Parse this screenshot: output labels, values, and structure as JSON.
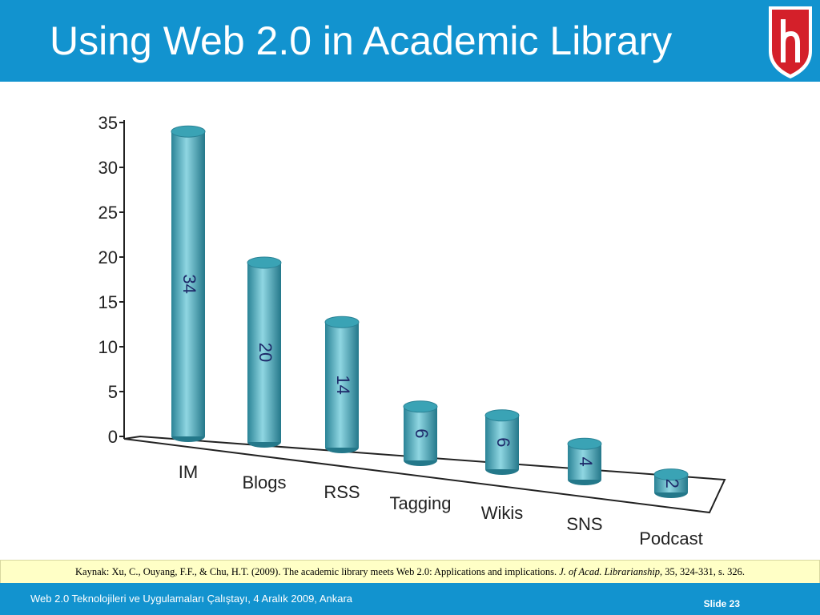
{
  "slide": {
    "title": "Using Web 2.0 in Academic Library",
    "citation": [
      "Kaynak: Xu, C., Ouyang, F.F., & Chu, H.T. (2009). The academic library meets Web 2.0:  Applications and implications. ",
      "J. of Acad. Librarianship",
      ", 35, 324-331, s. 326."
    ],
    "footer": "Web 2.0 Teknolojileri ve Uygulamaları Çalıştayı, 4 Aralık 2009, Ankara",
    "slide_number": "Slide 23"
  },
  "chart_data": {
    "type": "bar",
    "categories": [
      "IM",
      "Blogs",
      "RSS",
      "Tagging",
      "Wikis",
      "SNS",
      "Podcast"
    ],
    "values": [
      34,
      20,
      14,
      6,
      6,
      4,
      2
    ],
    "color": "#3aa3b5",
    "ylim": [
      0,
      35
    ],
    "yticks": [
      0,
      5,
      10,
      15,
      20,
      25,
      30,
      35
    ]
  }
}
